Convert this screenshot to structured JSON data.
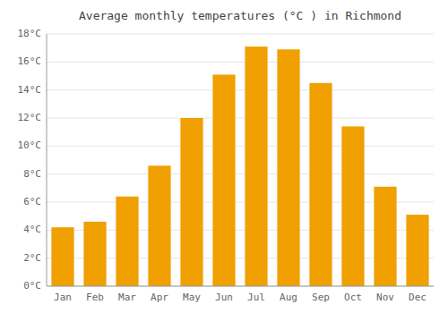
{
  "chart_data": {
    "type": "bar",
    "title": "Average monthly temperatures (°C ) in Richmond",
    "categories": [
      "Jan",
      "Feb",
      "Mar",
      "Apr",
      "May",
      "Jun",
      "Jul",
      "Aug",
      "Sep",
      "Oct",
      "Nov",
      "Dec"
    ],
    "values": [
      4.2,
      4.6,
      6.4,
      8.6,
      12.0,
      15.1,
      17.1,
      16.9,
      14.5,
      11.4,
      7.1,
      5.1
    ],
    "color": "#F0A000",
    "ylim": [
      0,
      18
    ],
    "yticks": [
      {
        "value": 0,
        "label": "0°C"
      },
      {
        "value": 2,
        "label": "2°C"
      },
      {
        "value": 4,
        "label": "4°C"
      },
      {
        "value": 6,
        "label": "6°C"
      },
      {
        "value": 8,
        "label": "8°C"
      },
      {
        "value": 10,
        "label": "10°C"
      },
      {
        "value": 12,
        "label": "12°C"
      },
      {
        "value": 14,
        "label": "14°C"
      },
      {
        "value": 16,
        "label": "16°C"
      },
      {
        "value": 18,
        "label": "18°C"
      }
    ],
    "grid": true
  }
}
